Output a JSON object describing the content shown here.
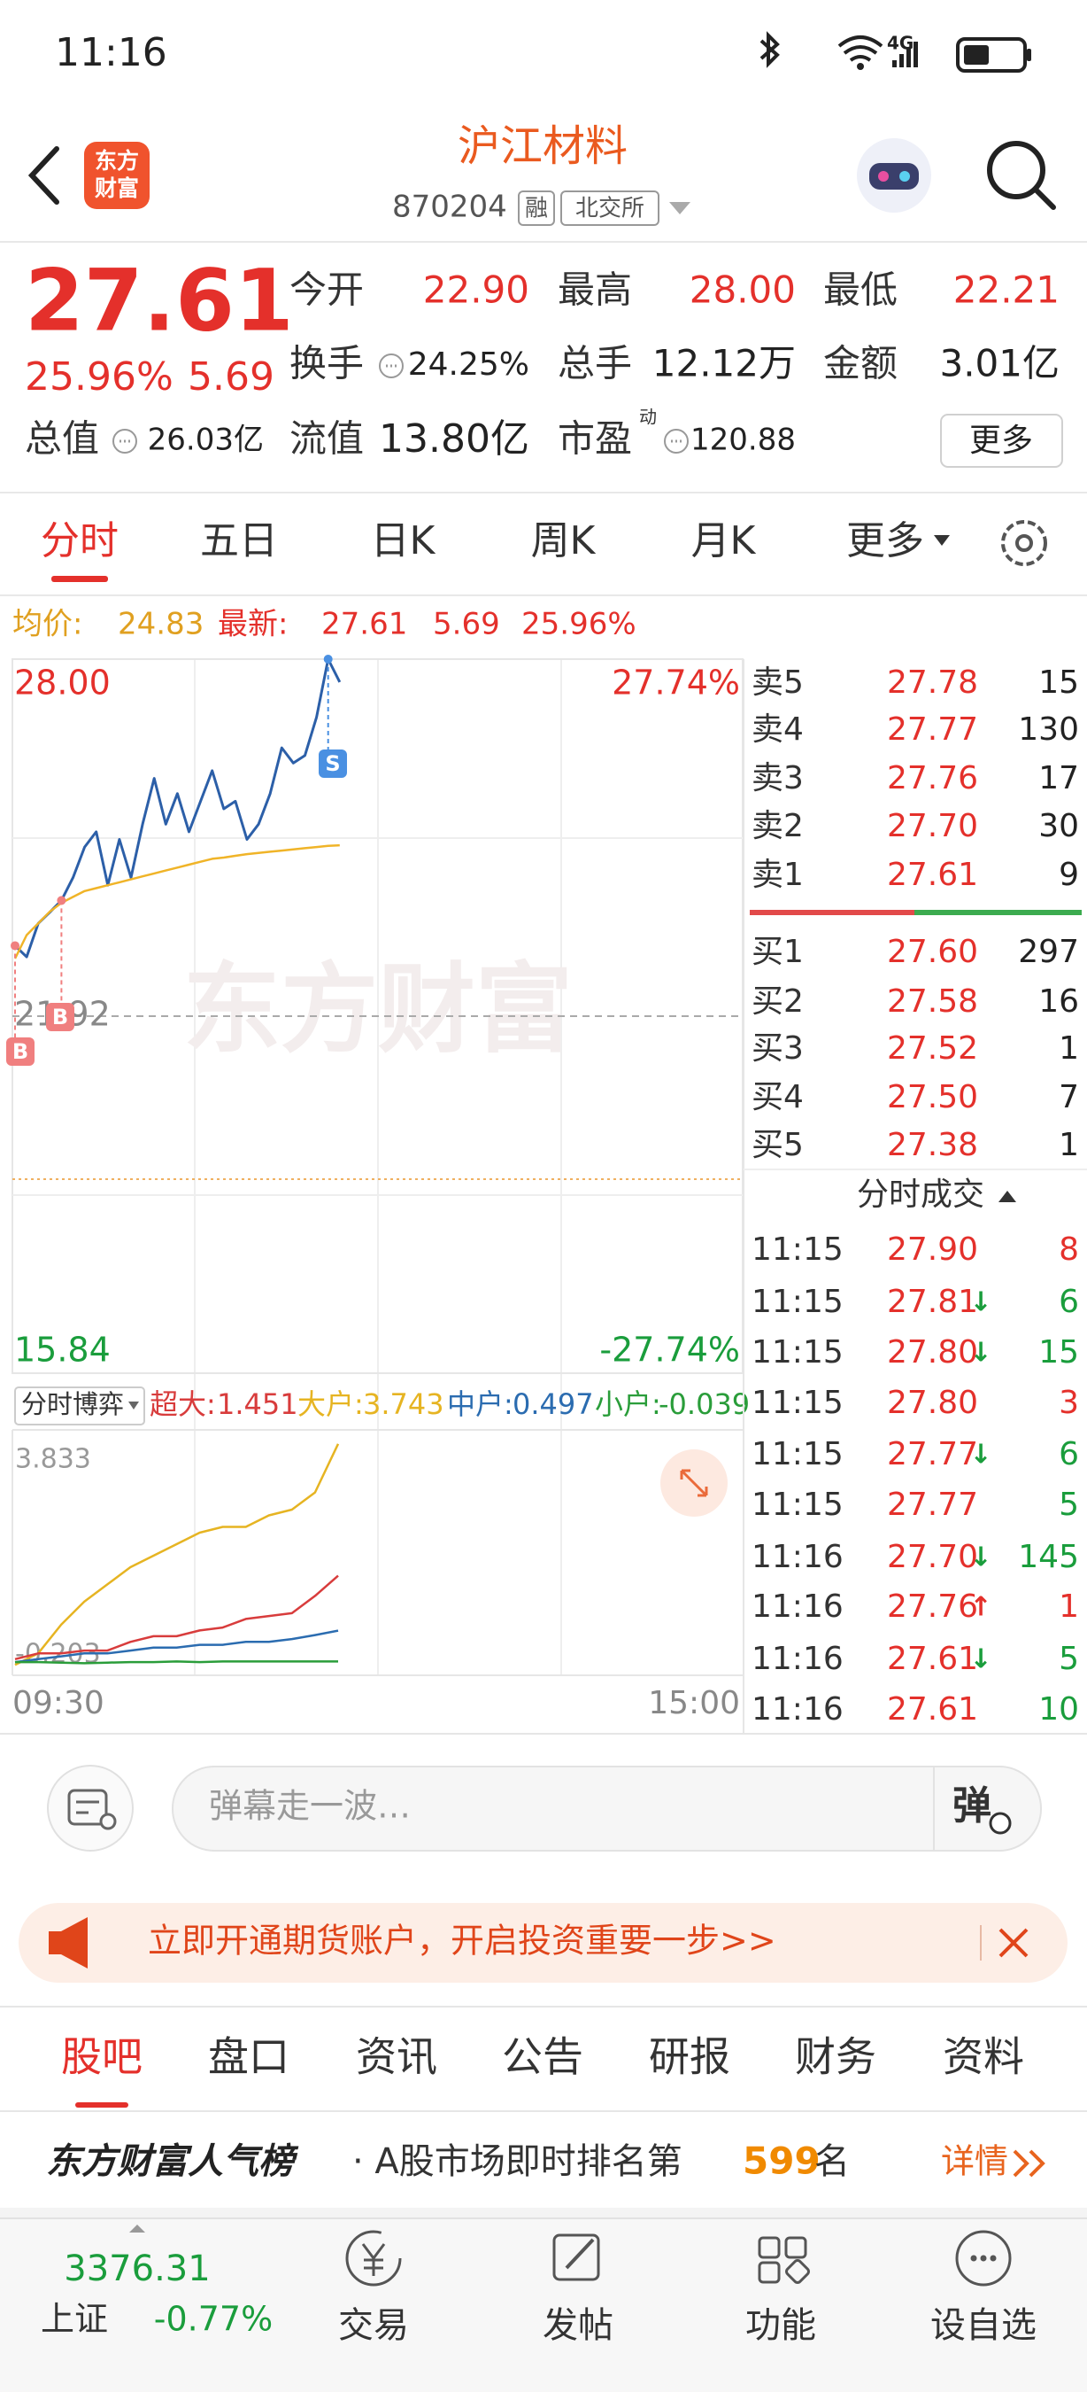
{
  "status_bar": {
    "time": "11:16",
    "network": "4G"
  },
  "header": {
    "logo": [
      "东方",
      "财富"
    ],
    "title": "沪江材料",
    "code": "870204",
    "badges": [
      "融",
      "北交所"
    ]
  },
  "quote": {
    "price": "27.61",
    "change_pct": "25.96%",
    "change": "5.69",
    "stats": [
      {
        "label": "今开",
        "value": "22.90"
      },
      {
        "label": "最高",
        "value": "28.00"
      },
      {
        "label": "最低",
        "value": "22.21"
      },
      {
        "label": "换手",
        "value": "24.25%"
      },
      {
        "label": "总手",
        "value": "12.12万"
      },
      {
        "label": "金额",
        "value": "3.01亿"
      },
      {
        "label": "总值",
        "value": "26.03亿"
      },
      {
        "label": "流值",
        "value": "13.80亿"
      },
      {
        "label": "市盈",
        "sup": "动",
        "value": "120.88"
      }
    ],
    "more": "更多"
  },
  "tabs": [
    "分时",
    "五日",
    "日K",
    "周K",
    "月K",
    "更多"
  ],
  "intraday": {
    "avg_label": "均价:",
    "avg": "24.83",
    "latest_label": "最新:",
    "latest": "27.61",
    "change": "5.69",
    "change_pct": "25.96%",
    "watermark": "东方财富",
    "chart": {
      "type": "line",
      "ylim": [
        15.84,
        28.0
      ],
      "yticks": [
        {
          "value": 28.0,
          "label": "28.00"
        },
        {
          "value": 21.92,
          "label": "21.92"
        },
        {
          "value": 15.84,
          "label": "15.84"
        }
      ],
      "pct_labels": [
        "27.74%",
        "-27.74%"
      ],
      "x_labels": [
        "09:30",
        "15:00"
      ],
      "series": [
        {
          "color": "#2c5fa8",
          "values": [
            23.12,
            22.93,
            23.5,
            23.69,
            23.89,
            24.28,
            24.8,
            25.06,
            24.15,
            24.93,
            24.28,
            25.19,
            25.97,
            25.19,
            25.71,
            25.06,
            25.58,
            26.1,
            25.45,
            25.58,
            24.93,
            25.19,
            25.71,
            26.49,
            26.23,
            26.36,
            27.01,
            28.0,
            27.61
          ]
        },
        {
          "color": "#f0b428",
          "values": [
            22.9,
            23.3,
            23.5,
            23.7,
            23.85,
            23.95,
            24.05,
            24.1,
            24.15,
            24.2,
            24.25,
            24.3,
            24.35,
            24.4,
            24.45,
            24.5,
            24.55,
            24.6,
            24.62,
            24.65,
            24.68,
            24.7,
            24.72,
            24.74,
            24.76,
            24.78,
            24.8,
            24.82,
            24.83
          ]
        }
      ],
      "trade_markers": [
        {
          "label": "B"
        },
        {
          "label": "B"
        },
        {
          "label": "S"
        }
      ]
    }
  },
  "flow": {
    "selector": "分时博弈",
    "ylim": [
      -0.203,
      3.833
    ],
    "yticks": [
      3.833,
      -0.203
    ],
    "series": [
      {
        "name": "超大:",
        "color": "#d83c3c",
        "current": 1.451,
        "values": [
          0.0,
          0.1,
          0.1,
          0.15,
          0.15,
          0.3,
          0.4,
          0.4,
          0.5,
          0.55,
          0.7,
          0.75,
          0.8,
          1.1,
          1.451
        ]
      },
      {
        "name": "大户:",
        "color": "#e6b422",
        "current": 3.743,
        "values": [
          -0.1,
          0.1,
          0.6,
          1.0,
          1.3,
          1.6,
          1.8,
          2.0,
          2.2,
          2.3,
          2.3,
          2.5,
          2.6,
          2.9,
          3.743
        ]
      },
      {
        "name": "中户:",
        "color": "#2b6cb0",
        "current": 0.497,
        "values": [
          -0.05,
          0.0,
          0.05,
          0.1,
          0.1,
          0.15,
          0.2,
          0.2,
          0.25,
          0.25,
          0.3,
          0.3,
          0.35,
          0.42,
          0.497
        ]
      },
      {
        "name": "小户:",
        "color": "#2a9d3a",
        "current": -0.039,
        "values": [
          -0.05,
          -0.05,
          -0.06,
          -0.07,
          -0.06,
          -0.05,
          -0.05,
          -0.04,
          -0.05,
          -0.04,
          -0.04,
          -0.04,
          -0.04,
          -0.04,
          -0.039
        ]
      }
    ]
  },
  "order_book": {
    "asks": [
      {
        "label": "卖5",
        "price": "27.78",
        "volume": "15"
      },
      {
        "label": "卖4",
        "price": "27.77",
        "volume": "130"
      },
      {
        "label": "卖3",
        "price": "27.76",
        "volume": "17"
      },
      {
        "label": "卖2",
        "price": "27.70",
        "volume": "30"
      },
      {
        "label": "卖1",
        "price": "27.61",
        "volume": "9"
      }
    ],
    "bids": [
      {
        "label": "买1",
        "price": "27.60",
        "volume": "297"
      },
      {
        "label": "买2",
        "price": "27.58",
        "volume": "16"
      },
      {
        "label": "买3",
        "price": "27.52",
        "volume": "1"
      },
      {
        "label": "买4",
        "price": "27.50",
        "volume": "7"
      },
      {
        "label": "买5",
        "price": "27.38",
        "volume": "1"
      }
    ]
  },
  "trades_title": "分时成交",
  "trades": [
    {
      "time": "11:15",
      "price": "27.90",
      "volume": "8",
      "color": "#e4302b"
    },
    {
      "time": "11:15",
      "price": "27.81",
      "arrow": "↓",
      "volume": "6",
      "color": "#1a9d3c"
    },
    {
      "time": "11:15",
      "price": "27.80",
      "arrow": "↓",
      "volume": "15",
      "color": "#1a9d3c"
    },
    {
      "time": "11:15",
      "price": "27.80",
      "volume": "3",
      "color": "#e4302b"
    },
    {
      "time": "11:15",
      "price": "27.77",
      "arrow": "↓",
      "volume": "6",
      "color": "#1a9d3c"
    },
    {
      "time": "11:15",
      "price": "27.77",
      "volume": "5",
      "color": "#1a9d3c"
    },
    {
      "time": "11:16",
      "price": "27.70",
      "arrow": "↓",
      "volume": "145",
      "color": "#1a9d3c"
    },
    {
      "time": "11:16",
      "price": "27.76",
      "arrow": "↑",
      "volume": "1",
      "color": "#e4302b"
    },
    {
      "time": "11:16",
      "price": "27.61",
      "arrow": "↓",
      "volume": "5",
      "color": "#1a9d3c"
    },
    {
      "time": "11:16",
      "price": "27.61",
      "volume": "10",
      "color": "#1a9d3c"
    }
  ],
  "comment": {
    "placeholder": "弹幕走一波…",
    "button": "弹"
  },
  "banner": {
    "text": "立即开通期货账户，开启投资重要一步>>"
  },
  "bottom_tabs": [
    "股吧",
    "盘口",
    "资讯",
    "公告",
    "研报",
    "财务",
    "资料"
  ],
  "ranking": {
    "brand": "东方财富人气榜",
    "prefix": "· A股市场即时排名第",
    "rank": "599",
    "suffix": "名",
    "link": "详情"
  },
  "nav": {
    "index_value": "3376.31",
    "index_name": "上证",
    "index_change": "-0.77%",
    "items": [
      "交易",
      "发帖",
      "功能",
      "设自选"
    ]
  }
}
